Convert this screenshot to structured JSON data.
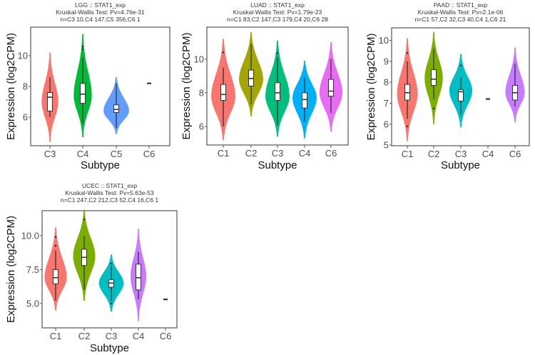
{
  "chart_data": [
    {
      "type": "violin",
      "title_lines": [
        "LGG :: STAT1_exp",
        "Kruskal-Wallis Test: Pv=4.76e-31",
        "n=C3 10,C4 147,C5 356,C6 1"
      ],
      "xlabel": "Subtype",
      "ylabel": "Expression (log2CPM)",
      "ylim": [
        4.14,
        11.86
      ],
      "yticks": [
        6,
        8,
        10
      ],
      "grid": false,
      "categories": [
        "C3",
        "C4",
        "C5",
        "C6"
      ],
      "series": [
        {
          "category": "C3",
          "color": "#F8766D",
          "min": 4.4,
          "max": 10.2,
          "peak": 7.0,
          "width": 0.55,
          "q1": 6.4,
          "median": 7.3,
          "q3": 7.6,
          "whisker_low": 6.0,
          "whisker_high": 8.6,
          "outliers": []
        },
        {
          "category": "C4",
          "color": "#00BA38",
          "min": 4.7,
          "max": 11.4,
          "peak": 7.4,
          "width": 0.6,
          "q1": 6.9,
          "median": 7.5,
          "q3": 8.2,
          "whisker_low": 5.6,
          "whisker_high": 9.9,
          "outliers": [
            10.4,
            10.6
          ]
        },
        {
          "category": "C5",
          "color": "#619CFF",
          "min": 4.9,
          "max": 8.6,
          "peak": 6.4,
          "width": 0.85,
          "q1": 6.3,
          "median": 6.5,
          "q3": 6.8,
          "whisker_low": 5.3,
          "whisker_high": 8.2,
          "outliers": []
        },
        {
          "category": "C6",
          "color": "#333333",
          "single": 8.2
        }
      ]
    },
    {
      "type": "violin",
      "title_lines": [
        "LUAD :: STAT1_exp",
        "Kruskal-Wallis Test: Pv=1.79e-23",
        "n=C1 83,C2 147,C3 179,C4 20,C6 28"
      ],
      "xlabel": "Subtype",
      "ylabel": "Expression (log2CPM)",
      "ylim": [
        4.9,
        11.9
      ],
      "yticks": [
        6,
        8,
        10
      ],
      "grid": false,
      "categories": [
        "C1",
        "C2",
        "C3",
        "C4",
        "C6"
      ],
      "series": [
        {
          "category": "C1",
          "color": "#F8766D",
          "min": 5.2,
          "max": 11.2,
          "peak": 7.8,
          "width": 0.95,
          "q1": 7.55,
          "median": 7.9,
          "q3": 8.5,
          "whisker_low": 6.0,
          "whisker_high": 9.5,
          "outliers": [
            10.4
          ]
        },
        {
          "category": "C2",
          "color": "#A3A500",
          "min": 6.6,
          "max": 11.6,
          "peak": 8.8,
          "width": 0.95,
          "q1": 8.4,
          "median": 8.85,
          "q3": 9.35,
          "whisker_low": 7.3,
          "whisker_high": 10.9,
          "outliers": []
        },
        {
          "category": "C3",
          "color": "#00BF7D",
          "min": 5.4,
          "max": 11.1,
          "peak": 7.8,
          "width": 0.95,
          "q1": 7.55,
          "median": 8.0,
          "q3": 8.6,
          "whisker_low": 6.1,
          "whisker_high": 10.1,
          "outliers": [
            10.35
          ]
        },
        {
          "category": "C4",
          "color": "#00B0F6",
          "min": 5.3,
          "max": 9.9,
          "peak": 7.7,
          "width": 0.95,
          "q1": 7.1,
          "median": 7.6,
          "q3": 8.0,
          "whisker_low": 6.3,
          "whisker_high": 8.9,
          "outliers": []
        },
        {
          "category": "C6",
          "color": "#E76BF3",
          "min": 5.7,
          "max": 11.0,
          "peak": 8.0,
          "width": 0.9,
          "q1": 7.8,
          "median": 8.1,
          "q3": 8.8,
          "whisker_low": 6.8,
          "whisker_high": 10.0,
          "outliers": []
        }
      ]
    },
    {
      "type": "violin",
      "title_lines": [
        "PAAD :: STAT1_exp",
        "Kruskal-Wallis Test: Pv=2.1e-06",
        "n=C1 57,C2 32,C3 40,C4 1,C6 21"
      ],
      "xlabel": "Subtype",
      "ylabel": "Expression (log2CPM)",
      "ylim": [
        4.97,
        10.6
      ],
      "yticks": [
        5,
        6,
        7,
        8,
        9,
        10
      ],
      "grid": false,
      "categories": [
        "C1",
        "C2",
        "C3",
        "C4",
        "C6"
      ],
      "series": [
        {
          "category": "C1",
          "color": "#F8766D",
          "min": 5.2,
          "max": 10.1,
          "peak": 7.45,
          "width": 0.85,
          "q1": 7.15,
          "median": 7.5,
          "q3": 7.9,
          "whisker_low": 6.25,
          "whisker_high": 9.0,
          "outliers": [
            9.4,
            5.9
          ]
        },
        {
          "category": "C2",
          "color": "#7CAE00",
          "min": 6.0,
          "max": 10.4,
          "peak": 8.2,
          "width": 0.75,
          "q1": 7.85,
          "median": 8.15,
          "q3": 8.6,
          "whisker_low": 7.2,
          "whisker_high": 9.6,
          "outliers": [
            6.75
          ]
        },
        {
          "category": "C3",
          "color": "#00BFC4",
          "min": 5.85,
          "max": 9.35,
          "peak": 7.6,
          "width": 0.95,
          "q1": 7.1,
          "median": 7.55,
          "q3": 7.65,
          "whisker_low": 6.45,
          "whisker_high": 8.25,
          "outliers": [
            8.8
          ]
        },
        {
          "category": "C4",
          "color": "#333333",
          "single": 7.2
        },
        {
          "category": "C6",
          "color": "#C77CFF",
          "min": 6.1,
          "max": 9.65,
          "peak": 7.5,
          "width": 0.8,
          "q1": 7.15,
          "median": 7.5,
          "q3": 7.85,
          "whisker_low": 6.85,
          "whisker_high": 8.9,
          "outliers": []
        }
      ]
    },
    {
      "type": "violin",
      "title_lines": [
        "UCEC :: STAT1_exp",
        "Kruskal-Wallis Test: Pv=5.63e-53",
        "n=C1 247,C2 212,C3 52,C4 16,C6 1"
      ],
      "xlabel": "Subtype",
      "ylabel": "Expression (log2CPM)",
      "ylim": [
        3.2,
        11.84
      ],
      "yticks": [
        5.0,
        7.5,
        10.0
      ],
      "ytick_labels": [
        "5.0",
        "7.5",
        "10.0"
      ],
      "grid": false,
      "categories": [
        "C1",
        "C2",
        "C3",
        "C4",
        "C6"
      ],
      "series": [
        {
          "category": "C1",
          "color": "#F8766D",
          "min": 4.5,
          "max": 10.6,
          "peak": 6.9,
          "width": 0.85,
          "q1": 6.45,
          "median": 6.9,
          "q3": 7.5,
          "whisker_low": 5.2,
          "whisker_high": 8.9,
          "outliers": [
            9.25,
            9.9
          ]
        },
        {
          "category": "C2",
          "color": "#7CAE00",
          "min": 5.2,
          "max": 11.9,
          "peak": 8.5,
          "width": 0.85,
          "q1": 7.8,
          "median": 8.4,
          "q3": 9.0,
          "whisker_low": 6.0,
          "whisker_high": 10.0,
          "outliers": [
            11.2
          ]
        },
        {
          "category": "C3",
          "color": "#00BFC4",
          "min": 4.4,
          "max": 8.6,
          "peak": 6.5,
          "width": 0.95,
          "q1": 6.2,
          "median": 6.5,
          "q3": 6.75,
          "whisker_low": 5.2,
          "whisker_high": 7.8,
          "outliers": [
            5.0,
            7.95
          ]
        },
        {
          "category": "C4",
          "color": "#C77CFF",
          "min": 3.7,
          "max": 10.5,
          "peak": 7.0,
          "width": 0.6,
          "q1": 6.0,
          "median": 6.9,
          "q3": 7.9,
          "whisker_low": 5.3,
          "whisker_high": 8.8,
          "outliers": []
        },
        {
          "category": "C6",
          "color": "#333333",
          "single": 5.3
        }
      ]
    }
  ]
}
